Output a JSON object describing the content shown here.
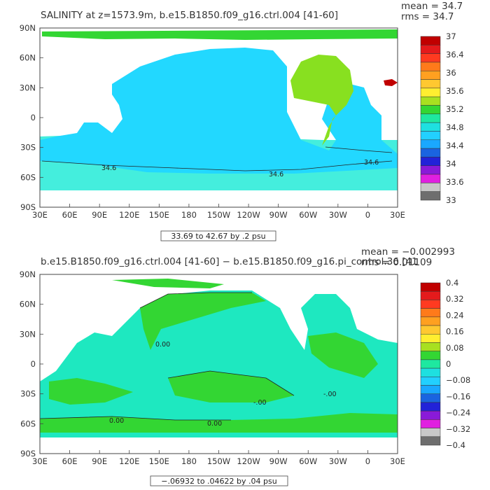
{
  "panels": [
    {
      "title": "SALINITY at z=1573.9m, b.e15.B1850.f09_g16.ctrl.004 [41-60]",
      "stat_mean": "mean = 34.7",
      "stat_rms": "rms = 34.7",
      "range_label": "33.69 to 42.67 by .2 psu",
      "contour_labels": [
        "34.6",
        "34.6",
        "34.6"
      ],
      "colorbar": {
        "labels": [
          "37",
          "36.4",
          "36",
          "35.6",
          "35.2",
          "34.8",
          "34.4",
          "34",
          "33.6",
          "33"
        ],
        "colors": [
          "#c00000",
          "#e41a1c",
          "#ff3a20",
          "#ff7a1a",
          "#ffa020",
          "#ffc830",
          "#ffee30",
          "#a8e020",
          "#33d633",
          "#1ee8a0",
          "#1ee0e0",
          "#22d0ff",
          "#1aa8ff",
          "#1a64e0",
          "#2222d8",
          "#8a1ad8",
          "#e020e0",
          "#c8c8c8",
          "#6e6e6e"
        ]
      },
      "map_colors": {
        "ocean": "#22d8ff",
        "southern": "#44eedd",
        "atlantic": "#88e020",
        "med": "#c00000",
        "band": "#33d633",
        "land": "#ffffff"
      }
    },
    {
      "title": "b.e15.B1850.f09_g16.ctrl.004 [41-60] − b.e15.B1850.f09_g16.pi_control.36 [41",
      "stat_mean": "mean = −0.002993",
      "stat_rms": "rms = 0.01109",
      "range_label": "−.06932 to .04622 by .04 psu",
      "contour_labels": [
        "0.00",
        "-.00",
        "0.00",
        "0.00",
        "-.00"
      ],
      "colorbar": {
        "labels": [
          "0.4",
          "0.32",
          "0.24",
          "0.16",
          "0.08",
          "0",
          "−0.08",
          "−0.16",
          "−0.24",
          "−0.32",
          "−0.4"
        ],
        "colors": [
          "#c00000",
          "#e41a1c",
          "#ff3a20",
          "#ff7a1a",
          "#ffa020",
          "#ffc830",
          "#ffee30",
          "#a8e020",
          "#33d633",
          "#1ee8a0",
          "#1ee0e0",
          "#22d0ff",
          "#1aa8ff",
          "#1a64e0",
          "#2222d8",
          "#8a1ad8",
          "#e020e0",
          "#c8c8c8",
          "#6e6e6e"
        ]
      },
      "map_colors": {
        "ocean": "#1ee8c0",
        "positive": "#33d633",
        "land": "#ffffff"
      }
    }
  ],
  "axes": {
    "lat_labels": [
      "90N",
      "60N",
      "30N",
      "0",
      "30S",
      "60S",
      "90S"
    ],
    "lon_labels": [
      "30E",
      "60E",
      "90E",
      "120E",
      "150E",
      "180",
      "150W",
      "120W",
      "90W",
      "60W",
      "30W",
      "0",
      "30E"
    ]
  }
}
